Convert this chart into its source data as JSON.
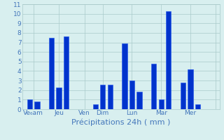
{
  "bars": [
    {
      "x": 1,
      "height": 1.0
    },
    {
      "x": 2,
      "height": 0.8
    },
    {
      "x": 4,
      "height": 7.5
    },
    {
      "x": 5,
      "height": 2.3
    },
    {
      "x": 6,
      "height": 7.6
    },
    {
      "x": 10,
      "height": 0.5
    },
    {
      "x": 11,
      "height": 2.6
    },
    {
      "x": 12,
      "height": 2.6
    },
    {
      "x": 14,
      "height": 6.9
    },
    {
      "x": 15,
      "height": 3.0
    },
    {
      "x": 16,
      "height": 1.8
    },
    {
      "x": 18,
      "height": 4.8
    },
    {
      "x": 19,
      "height": 1.0
    },
    {
      "x": 20,
      "height": 10.3
    },
    {
      "x": 22,
      "height": 2.8
    },
    {
      "x": 23,
      "height": 4.2
    },
    {
      "x": 24,
      "height": 0.5
    }
  ],
  "bar_width": 0.7,
  "bar_color": "#0033cc",
  "bar_edge_color": "#2255ee",
  "background_color": "#d8efef",
  "grid_color": "#aacaca",
  "xlabel": "Précipitations 24h ( mm )",
  "ylim": [
    0,
    11
  ],
  "yticks": [
    0,
    1,
    2,
    3,
    4,
    5,
    6,
    7,
    8,
    9,
    10,
    11
  ],
  "xlim": [
    0,
    27
  ],
  "xtick_positions": [
    1.5,
    5.0,
    8.5,
    11.0,
    15.0,
    19.0,
    23.0,
    26.5
  ],
  "xtick_labels": [
    "Ve₆am",
    "Jeu",
    "Ven",
    "Dim",
    "Lun",
    "Mar",
    "Mer",
    ""
  ],
  "tick_color": "#4477bb",
  "label_color": "#4477bb"
}
